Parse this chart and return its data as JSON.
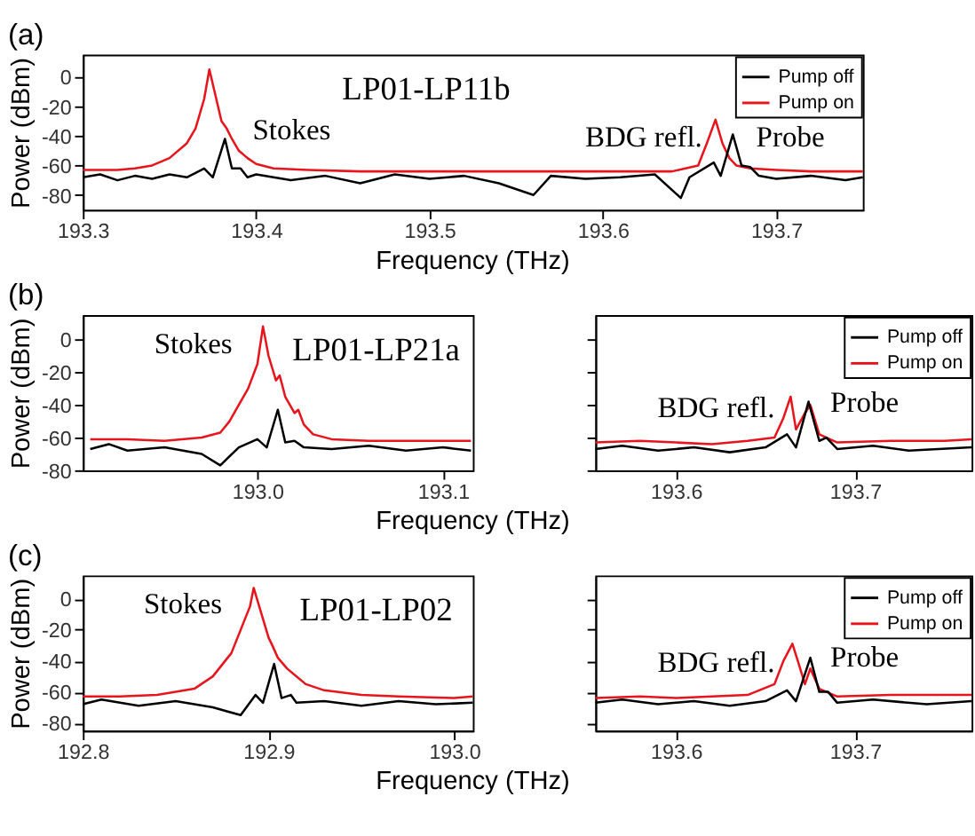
{
  "chart_data": [
    {
      "type": "line",
      "title": "(a)",
      "subtitle": "LP01-LP11b",
      "xlabel": "Frequency (THz)",
      "ylabel": "Power (dBm)",
      "xlim": [
        193.3,
        193.75
      ],
      "xticks": [
        193.3,
        193.4,
        193.5,
        193.6,
        193.7
      ],
      "ylim": [
        -90,
        15
      ],
      "yticks": [
        -80,
        -60,
        -40,
        -20,
        0
      ],
      "grid": false,
      "legend": "top right",
      "line_style": "solid",
      "marker": "none",
      "series": [
        {
          "name": "Pump off",
          "color": "#000000",
          "x": [
            193.3,
            193.31,
            193.32,
            193.33,
            193.34,
            193.35,
            193.36,
            193.37,
            193.375,
            193.382,
            193.386,
            193.391,
            193.395,
            193.4,
            193.42,
            193.44,
            193.46,
            193.48,
            193.5,
            193.52,
            193.54,
            193.56,
            193.57,
            193.59,
            193.61,
            193.63,
            193.645,
            193.65,
            193.664,
            193.668,
            193.675,
            193.68,
            193.685,
            193.69,
            193.7,
            193.72,
            193.74,
            193.75
          ],
          "values": [
            -68,
            -66,
            -70,
            -67,
            -69,
            -66,
            -68,
            -62,
            -68,
            -42,
            -62,
            -62,
            -68,
            -66,
            -70,
            -67,
            -72,
            -66,
            -69,
            -67,
            -72,
            -80,
            -67,
            -69,
            -68,
            -66,
            -82,
            -68,
            -58,
            -67,
            -39,
            -60,
            -61,
            -67,
            -69,
            -67,
            -70,
            -68
          ]
        },
        {
          "name": "Pump on",
          "color": "#e8141c",
          "x": [
            193.3,
            193.32,
            193.33,
            193.34,
            193.35,
            193.36,
            193.365,
            193.37,
            193.373,
            193.376,
            193.38,
            193.383,
            193.386,
            193.39,
            193.395,
            193.4,
            193.41,
            193.43,
            193.46,
            193.5,
            193.55,
            193.6,
            193.64,
            193.655,
            193.66,
            193.665,
            193.669,
            193.673,
            193.677,
            193.685,
            193.7,
            193.72,
            193.75
          ],
          "values": [
            -63,
            -63,
            -62,
            -60,
            -55,
            -45,
            -35,
            -15,
            5,
            -10,
            -30,
            -35,
            -42,
            -50,
            -55,
            -59,
            -62,
            -63,
            -64,
            -64,
            -64,
            -64,
            -64,
            -60,
            -45,
            -29,
            -45,
            -55,
            -60,
            -62,
            -63,
            -64,
            -64
          ]
        }
      ],
      "annotations": [
        "Stokes",
        "BDG refl.",
        "Probe"
      ]
    },
    {
      "type": "line",
      "title": "(b)",
      "subtitle": "LP01-LP21a",
      "xlabel": "Frequency (THz)",
      "ylabel": "Power (dBm)",
      "xlim": [
        192.906,
        193.116
      ],
      "xticks": [
        {
          "value": 193.0,
          "label": "193.0"
        },
        193.1
      ],
      "ylim": [
        -80,
        15
      ],
      "yticks": [
        -80,
        -60,
        -40,
        -20,
        0
      ],
      "grid": false,
      "line_style": "solid",
      "marker": "none",
      "series": [
        {
          "color": "#000000",
          "x": [
            192.91,
            192.92,
            192.93,
            192.95,
            192.97,
            192.98,
            192.99,
            193.0,
            193.005,
            193.011,
            193.015,
            193.02,
            193.025,
            193.04,
            193.06,
            193.08,
            193.1,
            193.115
          ],
          "values": [
            -67,
            -64,
            -68,
            -66,
            -70,
            -77,
            -66,
            -61,
            -66,
            -43,
            -63,
            -62,
            -66,
            -67,
            -65,
            -68,
            -66,
            -68
          ]
        },
        {
          "color": "#e8141c",
          "x": [
            192.91,
            192.93,
            192.95,
            192.97,
            192.98,
            192.985,
            192.99,
            192.995,
            193.0,
            193.003,
            193.006,
            193.01,
            193.012,
            193.015,
            193.02,
            193.022,
            193.025,
            193.03,
            193.04,
            193.06,
            193.08,
            193.1,
            193.115
          ],
          "values": [
            -61,
            -61,
            -62,
            -60,
            -57,
            -50,
            -40,
            -30,
            -15,
            8,
            -10,
            -25,
            -22,
            -35,
            -45,
            -43,
            -52,
            -58,
            -61,
            -62,
            -62,
            -62,
            -62
          ]
        }
      ],
      "annotations": [
        "Stokes"
      ]
    },
    {
      "type": "line",
      "xlim": [
        193.555,
        193.765
      ],
      "xticks": [
        193.6,
        193.7
      ],
      "ylim": [
        -80,
        15
      ],
      "yticks": [
        -80,
        -60,
        -40,
        -20,
        0
      ],
      "tick_labels": "x",
      "grid": false,
      "legend": "top right",
      "line_style": "solid",
      "marker": "none",
      "series": [
        {
          "name": "Pump off",
          "color": "#000000",
          "x": [
            193.555,
            193.57,
            193.59,
            193.61,
            193.63,
            193.65,
            193.662,
            193.667,
            193.674,
            193.68,
            193.684,
            193.69,
            193.71,
            193.73,
            193.765
          ],
          "values": [
            -67,
            -65,
            -68,
            -66,
            -69,
            -66,
            -58,
            -66,
            -38,
            -62,
            -60,
            -67,
            -65,
            -68,
            -66
          ]
        },
        {
          "name": "Pump on",
          "color": "#e8141c",
          "x": [
            193.555,
            193.58,
            193.6,
            193.62,
            193.64,
            193.655,
            193.66,
            193.664,
            193.667,
            193.672,
            193.675,
            193.68,
            193.69,
            193.72,
            193.75,
            193.765
          ],
          "values": [
            -63,
            -62,
            -63,
            -64,
            -62,
            -60,
            -48,
            -35,
            -55,
            -45,
            -40,
            -58,
            -63,
            -62,
            -62,
            -61
          ]
        }
      ],
      "annotations": [
        "BDG refl.",
        "Probe"
      ]
    },
    {
      "type": "line",
      "title": "(c)",
      "subtitle": "LP01-LP02",
      "xlabel": "Frequency (THz)",
      "ylabel": "Power (dBm)",
      "xlim": [
        192.8,
        193.01
      ],
      "xticks": [
        192.8,
        192.9,
        {
          "value": 193.0,
          "label": "193.0"
        }
      ],
      "ylim": [
        -85,
        15
      ],
      "yticks": [
        -80,
        -60,
        -40,
        -20,
        0
      ],
      "grid": false,
      "line_style": "solid",
      "marker": "none",
      "series": [
        {
          "color": "#000000",
          "x": [
            192.8,
            192.81,
            192.83,
            192.85,
            192.87,
            192.885,
            192.893,
            192.897,
            192.903,
            192.907,
            192.912,
            192.915,
            192.93,
            192.95,
            192.97,
            192.99,
            193.01
          ],
          "values": [
            -68,
            -65,
            -69,
            -66,
            -70,
            -75,
            -62,
            -67,
            -42,
            -64,
            -62,
            -67,
            -66,
            -69,
            -66,
            -68,
            -67
          ]
        },
        {
          "color": "#e8141c",
          "x": [
            192.8,
            192.82,
            192.84,
            192.86,
            192.87,
            192.88,
            192.885,
            192.89,
            192.892,
            192.895,
            192.9,
            192.902,
            192.905,
            192.91,
            192.92,
            192.93,
            192.95,
            192.97,
            193.0,
            193.01
          ],
          "values": [
            -63,
            -63,
            -62,
            -58,
            -50,
            -35,
            -20,
            -5,
            7,
            -5,
            -25,
            -30,
            -38,
            -45,
            -55,
            -59,
            -62,
            -63,
            -64,
            -63
          ]
        }
      ],
      "annotations": [
        "Stokes"
      ]
    },
    {
      "type": "line",
      "xlim": [
        193.555,
        193.765
      ],
      "xticks": [
        193.6,
        193.7
      ],
      "ylim": [
        -85,
        15
      ],
      "yticks": [
        -80,
        -60,
        -40,
        -20,
        0
      ],
      "tick_labels": "x",
      "grid": false,
      "legend": "top right",
      "line_style": "solid",
      "marker": "none",
      "series": [
        {
          "name": "Pump off",
          "color": "#000000",
          "x": [
            193.555,
            193.57,
            193.59,
            193.61,
            193.63,
            193.65,
            193.662,
            193.667,
            193.675,
            193.68,
            193.685,
            193.69,
            193.71,
            193.74,
            193.765
          ],
          "values": [
            -67,
            -65,
            -68,
            -66,
            -69,
            -66,
            -59,
            -66,
            -38,
            -60,
            -60,
            -67,
            -65,
            -68,
            -66
          ]
        },
        {
          "name": "Pump on",
          "color": "#e8141c",
          "x": [
            193.555,
            193.58,
            193.6,
            193.62,
            193.64,
            193.655,
            193.66,
            193.665,
            193.668,
            193.672,
            193.675,
            193.68,
            193.69,
            193.72,
            193.765
          ],
          "values": [
            -64,
            -63,
            -64,
            -63,
            -62,
            -55,
            -40,
            -29,
            -40,
            -55,
            -45,
            -58,
            -63,
            -62,
            -62
          ]
        }
      ],
      "annotations": [
        "BDG refl.",
        "Probe"
      ]
    }
  ]
}
